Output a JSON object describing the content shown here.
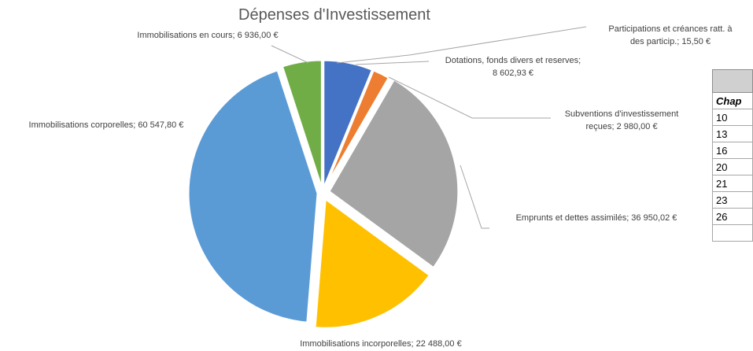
{
  "chart_data": {
    "type": "pie",
    "title": "Dépenses d'Investissement",
    "slices": [
      {
        "label": "Dotations, fonds divers et reserves",
        "value_text": "8 602,93 €",
        "value": 8602.93,
        "color": "#4472c4"
      },
      {
        "label": "Subventions d'investissement reçues",
        "value_text": "2 980,00 €",
        "value": 2980.0,
        "color": "#ed7d31"
      },
      {
        "label": "Participations et créances ratt. à des particip.",
        "value_text": "15,50 €",
        "value": 15.5,
        "color": "#ffffff"
      },
      {
        "label": "Emprunts et dettes assimilés",
        "value_text": "36 950,02 €",
        "value": 36950.02,
        "color": "#a5a5a5"
      },
      {
        "label": "Immobilisations incorporelles",
        "value_text": "22 488,00 €",
        "value": 22488.0,
        "color": "#ffc000"
      },
      {
        "label": "Immobilisations corporelles",
        "value_text": "60 547,80 €",
        "value": 60547.8,
        "color": "#5b9bd5"
      },
      {
        "label": "Immobilisations en cours",
        "value_text": "6 936,00 €",
        "value": 6936.0,
        "color": "#70ad47"
      }
    ],
    "data_labels": [
      {
        "lines": [
          "Participations et créances ratt. à",
          "des particip.;  15,50 €"
        ]
      },
      {
        "lines": [
          "Dotations, fonds divers et reserves;",
          "8 602,93 €"
        ]
      },
      {
        "lines": [
          "Subventions d'investissement",
          "reçues; 2 980,00 €"
        ]
      },
      {
        "lines": [
          "Emprunts et dettes assimilés; 36 950,02 €"
        ]
      },
      {
        "lines": [
          "Immobilisations incorporelles; 22 488,00 €"
        ]
      },
      {
        "lines": [
          "Immobilisations corporelles; 60 547,80 €"
        ]
      },
      {
        "lines": [
          "Immobilisations en cours; 6 936,00 €"
        ]
      }
    ]
  },
  "side_table": {
    "header": "",
    "subheader": "Chap",
    "rows": [
      "10",
      "13",
      "16",
      "20",
      "21",
      "23",
      "26",
      ""
    ]
  }
}
